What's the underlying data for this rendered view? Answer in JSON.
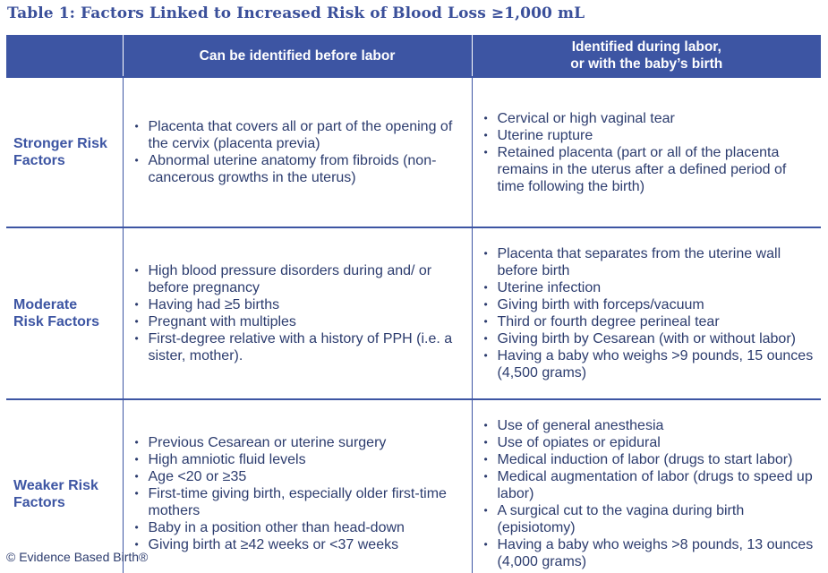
{
  "title": "Table 1: Factors Linked to Increased Risk of Blood Loss ≥1,000 mL",
  "columns": {
    "blank": "",
    "before_labor": "Can be identified before labor",
    "during_labor_line1": "Identified during labor,",
    "during_labor_line2": "or with the baby’s birth"
  },
  "rows": [
    {
      "label_lines": [
        "Stronger Risk",
        "Factors"
      ],
      "before": [
        "Placenta that covers all or part of the opening of the cervix (placenta previa)",
        "Abnormal uterine anatomy from fibroids (non-cancerous growths in the uterus)"
      ],
      "during": [
        "Cervical or high vaginal tear",
        "Uterine rupture",
        "Retained placenta (part or all of the placenta remains in the uterus after a defined period of time following the birth)"
      ]
    },
    {
      "label_lines": [
        "Moderate",
        "Risk Factors"
      ],
      "before": [
        "High blood pressure disorders during and/ or before pregnancy",
        "Having had ≥5 births",
        "Pregnant with multiples",
        "First-degree relative with a history of PPH (i.e. a sister, mother)."
      ],
      "during": [
        "Placenta that separates from the uterine wall before birth",
        "Uterine infection",
        "Giving birth with forceps/vacuum",
        "Third or fourth degree perineal tear",
        "Giving birth by Cesarean (with or without labor)",
        "Having a baby who weighs >9 pounds, 15 ounces (4,500 grams)"
      ]
    },
    {
      "label_lines": [
        "Weaker Risk",
        "Factors"
      ],
      "before": [
        "Previous Cesarean or uterine surgery",
        "High amniotic fluid levels",
        "Age <20 or ≥35",
        "First-time giving birth, especially older first-time mothers",
        "Baby in a position other than head-down",
        "Giving birth at ≥42 weeks or <37 weeks"
      ],
      "during": [
        "Use of general anesthesia",
        "Use of opiates or epidural",
        "Medical induction of labor (drugs to start labor)",
        "Medical augmentation of labor (drugs to speed up labor)",
        "A surgical cut to the vagina during birth (episiotomy)",
        "Having a baby who weighs >8 pounds, 13 ounces (4,000 grams)"
      ]
    }
  ],
  "bullet_glyph": "•",
  "footer": "© Evidence Based Birth®",
  "colors": {
    "header_bg": "#3d55a3",
    "title": "#3a4f9a",
    "text": "#2c3c6e"
  }
}
